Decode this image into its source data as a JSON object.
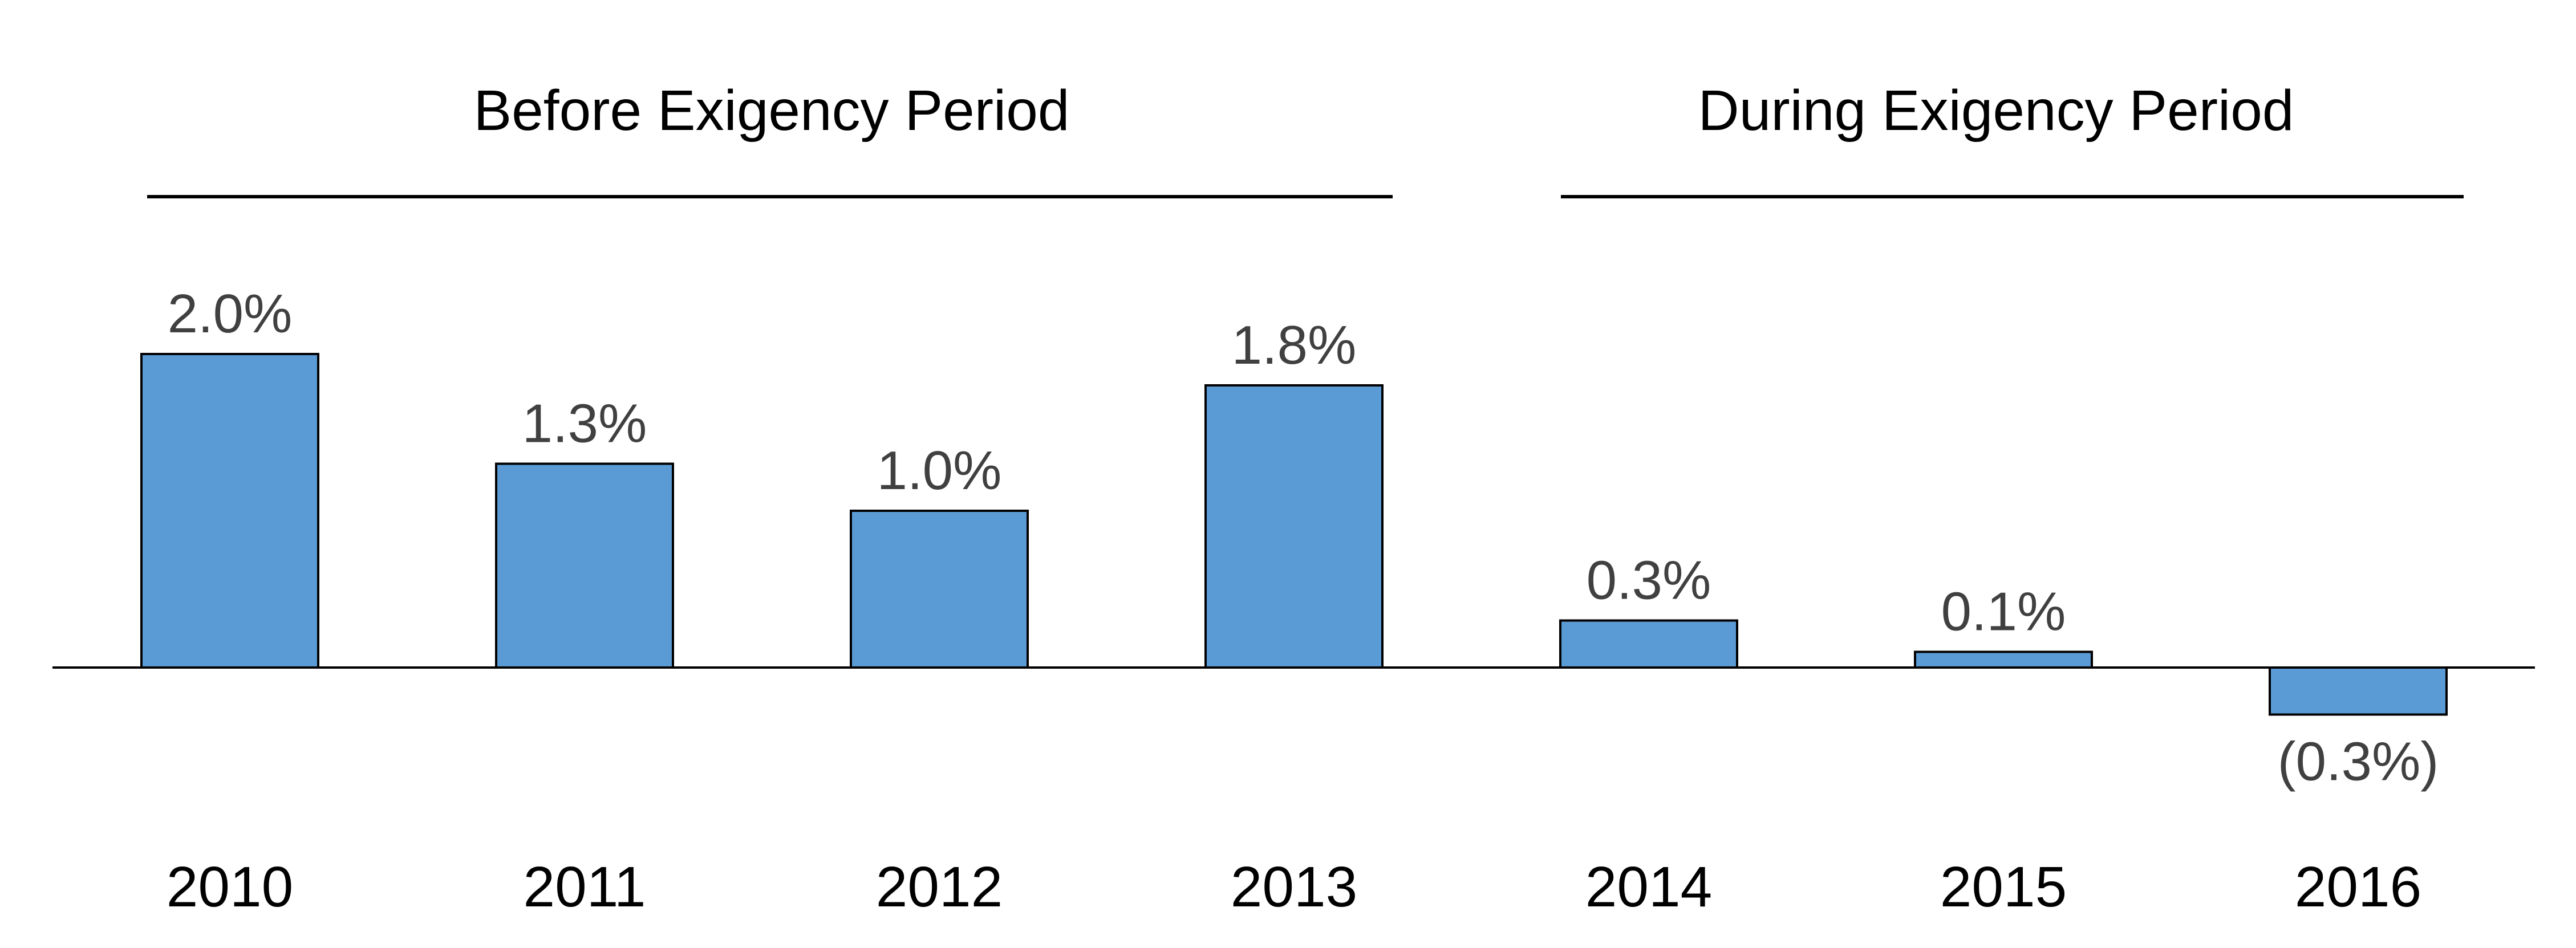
{
  "chart_data": {
    "type": "bar",
    "categories": [
      "2010",
      "2011",
      "2012",
      "2013",
      "2014",
      "2015",
      "2016"
    ],
    "values": [
      2.0,
      1.3,
      1.0,
      1.8,
      0.3,
      0.1,
      -0.3
    ],
    "value_labels": [
      "2.0%",
      "1.3%",
      "1.0%",
      "1.8%",
      "0.3%",
      "0.1%",
      "(0.3%)"
    ],
    "groups": [
      {
        "label": "Before Exigency Period",
        "categories": [
          "2010",
          "2011",
          "2012",
          "2013"
        ]
      },
      {
        "label": "During Exigency Period",
        "categories": [
          "2014",
          "2015",
          "2016"
        ]
      }
    ],
    "bar_color": "#5b9bd5",
    "grid": false,
    "legend": "none"
  }
}
